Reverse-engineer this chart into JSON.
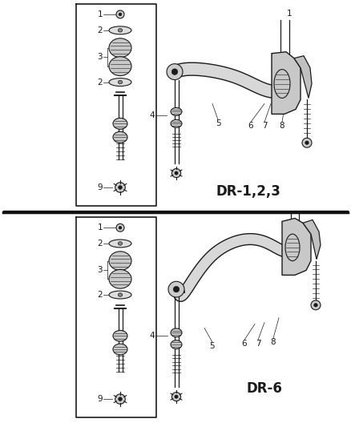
{
  "background_color": "#ffffff",
  "line_color": "#1a1a1a",
  "panel1_label": "DR-1,2,3",
  "panel2_label": "DR-6",
  "label_fontsize": 7.5,
  "title_fontsize": 12
}
